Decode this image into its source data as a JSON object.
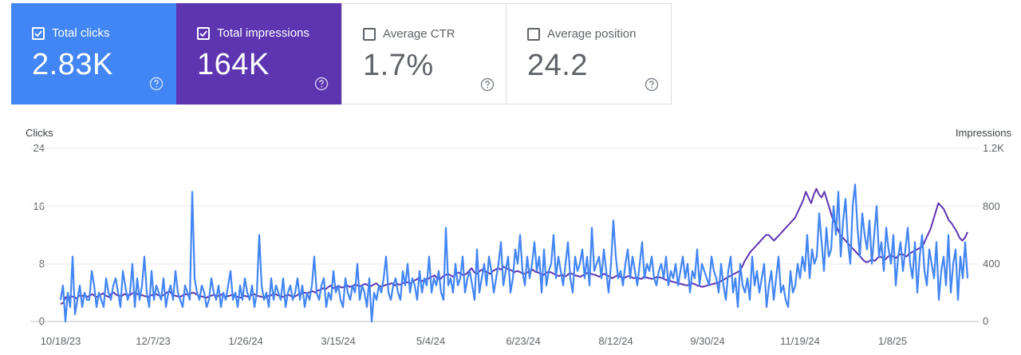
{
  "metrics": [
    {
      "label": "Total clicks",
      "value": "2.83K",
      "checked": true,
      "color": "#4285f4"
    },
    {
      "label": "Total impressions",
      "value": "164K",
      "checked": true,
      "color": "#5e35b1"
    },
    {
      "label": "Average CTR",
      "value": "1.7%",
      "checked": false,
      "color": "#ffffff"
    },
    {
      "label": "Average position",
      "value": "24.2",
      "checked": false,
      "color": "#ffffff"
    }
  ],
  "chart_data": {
    "type": "line",
    "left_axis": {
      "title": "Clicks",
      "ticks": [
        "0",
        "8",
        "16",
        "24"
      ],
      "range": [
        0,
        24
      ]
    },
    "right_axis": {
      "title": "Impressions",
      "ticks": [
        "0",
        "400",
        "800",
        "1.2K"
      ],
      "range": [
        0,
        1200
      ]
    },
    "x_ticks": [
      "10/18/23",
      "12/7/23",
      "1/26/24",
      "3/15/24",
      "5/4/24",
      "6/23/24",
      "8/12/24",
      "9/30/24",
      "11/19/24",
      "1/8/25"
    ],
    "series": [
      {
        "name": "Impressions",
        "axis": "right",
        "color": "#5e35b1",
        "values": [
          120,
          130,
          170,
          160,
          175,
          170,
          160,
          180,
          175,
          185,
          170,
          180,
          190,
          175,
          170,
          185,
          195,
          180,
          170,
          190,
          200,
          185,
          180,
          175,
          190,
          185,
          180,
          195,
          200,
          190,
          185,
          180,
          175,
          170,
          180,
          185,
          190,
          180,
          175,
          185,
          200,
          210,
          190,
          180,
          175,
          170,
          180,
          190,
          185,
          195,
          200,
          190,
          180,
          175,
          170,
          165,
          175,
          180,
          185,
          175,
          180,
          190,
          170,
          175,
          180,
          185,
          175,
          170,
          165,
          180,
          175,
          170,
          185,
          190,
          180,
          175,
          170,
          165,
          175,
          180,
          185,
          190,
          180,
          175,
          170,
          180,
          185,
          175,
          170,
          180,
          190,
          195,
          200,
          195,
          205,
          210,
          200,
          215,
          220,
          230,
          225,
          240,
          250,
          230,
          240,
          245,
          235,
          240,
          250,
          240,
          245,
          255,
          250,
          245,
          255,
          260,
          250,
          245,
          255,
          265,
          250,
          240,
          250,
          255,
          260,
          265,
          250,
          260,
          255,
          265,
          275,
          270,
          265,
          280,
          290,
          300,
          280,
          285,
          295,
          300,
          310,
          320,
          300,
          290,
          310,
          320,
          330,
          320,
          310,
          330,
          340,
          330,
          320,
          330,
          350,
          370,
          340,
          330,
          350,
          360,
          350,
          340,
          330,
          350,
          360,
          370,
          360,
          380,
          370,
          360,
          355,
          340,
          350,
          345,
          335,
          330,
          340,
          350,
          360,
          345,
          340,
          330,
          320,
          335,
          345,
          340,
          330,
          320,
          315,
          325,
          310,
          320,
          335,
          330,
          320,
          315,
          310,
          320,
          330,
          340,
          330,
          325,
          320,
          310,
          320,
          330,
          320,
          310,
          300,
          310,
          320,
          310,
          300,
          305,
          315,
          310,
          300,
          305,
          300,
          295,
          310,
          305,
          300,
          295,
          300,
          310,
          305,
          300,
          290,
          285,
          280,
          275,
          270,
          265,
          260,
          255,
          250,
          255,
          265,
          260,
          250,
          245,
          240,
          245,
          250,
          255,
          260,
          265,
          270,
          280,
          290,
          300,
          310,
          320,
          330,
          340,
          350,
          380,
          420,
          450,
          480,
          500,
          520,
          540,
          560,
          580,
          600,
          600,
          580,
          560,
          580,
          600,
          620,
          640,
          660,
          680,
          700,
          720,
          760,
          800,
          840,
          900,
          860,
          820,
          880,
          920,
          880,
          860,
          900,
          840,
          780,
          720,
          680,
          640,
          600,
          580,
          560,
          540,
          520,
          500,
          480,
          460,
          440,
          420,
          410,
          420,
          430,
          420,
          440,
          450,
          440,
          430,
          450,
          460,
          450,
          440,
          460,
          470,
          460,
          450,
          470,
          480,
          490,
          500,
          510,
          520,
          560,
          600,
          640,
          700,
          760,
          820,
          800,
          780,
          740,
          700,
          680,
          650,
          620,
          580,
          560,
          580,
          620
        ]
      },
      {
        "name": "Clicks",
        "axis": "left",
        "color": "#4285f4",
        "values": [
          3,
          5,
          0,
          4,
          2,
          9,
          1,
          3,
          5,
          2,
          4,
          3,
          3,
          7,
          5,
          2,
          4,
          3,
          2,
          6,
          4,
          3,
          5,
          6,
          4,
          2,
          7,
          5,
          3,
          4,
          8,
          2,
          6,
          3,
          5,
          9,
          4,
          2,
          7,
          3,
          5,
          4,
          3,
          6,
          2,
          4,
          5,
          3,
          7,
          4,
          3,
          2,
          5,
          4,
          3,
          18,
          6,
          4,
          3,
          5,
          4,
          2,
          3,
          6,
          4,
          3,
          5,
          2,
          4,
          3,
          5,
          7,
          3,
          4,
          2,
          5,
          3,
          6,
          4,
          3,
          5,
          2,
          4,
          12,
          5,
          3,
          4,
          2,
          6,
          3,
          5,
          4,
          3,
          6,
          2,
          4,
          5,
          3,
          4,
          6,
          3,
          5,
          2,
          4,
          3,
          5,
          9,
          4,
          3,
          5,
          6,
          2,
          4,
          3,
          7,
          4,
          5,
          3,
          2,
          6,
          4,
          3,
          5,
          4,
          8,
          3,
          5,
          4,
          2,
          6,
          0,
          4,
          3,
          5,
          4,
          6,
          9,
          4,
          3,
          5,
          6,
          4,
          3,
          7,
          5,
          8,
          4,
          6,
          5,
          3,
          7,
          4,
          6,
          5,
          9,
          4,
          6,
          5,
          7,
          4,
          3,
          13,
          5,
          6,
          4,
          8,
          5,
          6,
          9,
          4,
          6,
          7,
          5,
          3,
          10,
          4,
          6,
          8,
          5,
          9,
          7,
          4,
          6,
          8,
          11,
          5,
          7,
          9,
          4,
          6,
          10,
          8,
          12,
          7,
          5,
          9,
          6,
          8,
          11,
          7,
          9,
          4,
          10,
          5,
          7,
          8,
          12,
          6,
          9,
          7,
          5,
          8,
          11,
          6,
          4,
          9,
          7,
          8,
          10,
          6,
          9,
          5,
          13,
          7,
          8,
          9,
          6,
          10,
          7,
          4,
          8,
          14,
          9,
          6,
          7,
          5,
          8,
          10,
          6,
          9,
          7,
          5,
          8,
          11,
          6,
          8,
          7,
          9,
          6,
          5,
          7,
          8,
          6,
          9,
          5,
          7,
          6,
          8,
          5,
          7,
          9,
          6,
          8,
          4,
          7,
          6,
          10,
          5,
          8,
          7,
          6,
          5,
          9,
          7,
          6,
          4,
          8,
          5,
          3,
          7,
          9,
          4,
          6,
          2,
          8,
          5,
          4,
          6,
          3,
          9,
          5,
          7,
          4,
          6,
          8,
          2,
          5,
          7,
          3,
          6,
          9,
          4,
          5,
          3,
          2,
          7,
          4,
          5,
          8,
          6,
          9,
          7,
          12,
          6,
          10,
          8,
          9,
          15,
          11,
          7,
          13,
          9,
          10,
          16,
          12,
          18,
          9,
          14,
          17,
          11,
          8,
          16,
          19,
          13,
          9,
          15,
          12,
          10,
          14,
          8,
          12,
          16,
          9,
          11,
          7,
          13,
          10,
          8,
          12,
          5,
          9,
          11,
          7,
          10,
          13,
          8,
          6,
          11,
          4,
          9,
          12,
          7,
          5,
          10,
          8,
          6,
          11,
          3,
          7,
          9,
          5,
          12,
          4,
          8,
          10,
          3,
          9,
          6,
          11,
          6
        ]
      }
    ]
  }
}
